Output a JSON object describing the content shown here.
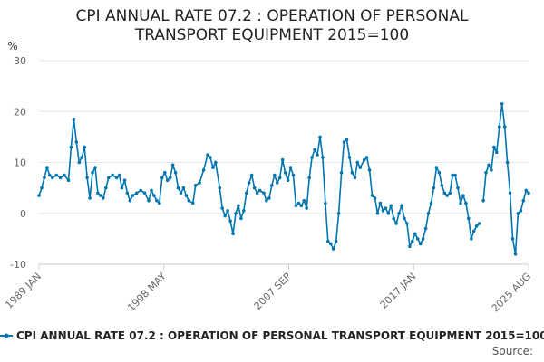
{
  "title": {
    "line1": "CPI ANNUAL RATE 07.2 : OPERATION OF PERSONAL",
    "line2": "TRANSPORT EQUIPMENT 2015=100"
  },
  "legend": {
    "label": "CPI ANNUAL RATE 07.2 : OPERATION OF PERSONAL TRANSPORT EQUIPMENT 2015=100"
  },
  "source": {
    "label": "Source:"
  },
  "colors": {
    "series": "#0075b0",
    "grid": "#e6e6e6",
    "axis": "#cccccc",
    "text": "#666666"
  },
  "chart_data": {
    "type": "line",
    "title": "CPI ANNUAL RATE 07.2 : OPERATION OF PERSONAL TRANSPORT EQUIPMENT 2015=100",
    "ylabel": "%",
    "xlabel": "",
    "ylim": [
      -10,
      30
    ],
    "yticks": [
      -10,
      0,
      10,
      20,
      30
    ],
    "xlim": [
      1989.0,
      2025.583
    ],
    "xticks": [
      {
        "x": 1989.0,
        "label": "1989 JAN"
      },
      {
        "x": 1998.333,
        "label": "1998 MAY"
      },
      {
        "x": 2007.667,
        "label": "2007 SEP"
      },
      {
        "x": 2017.0,
        "label": "2017 JAN"
      },
      {
        "x": 2025.583,
        "label": "2025 AUG"
      }
    ],
    "grid": true,
    "series": [
      {
        "name": "CPI ANNUAL RATE 07.2 : OPERATION OF PERSONAL TRANSPORT EQUIPMENT 2015=100",
        "segments": [
          [
            [
              1989.0,
              3.5
            ],
            [
              1989.2,
              5.0
            ],
            [
              1989.4,
              7.0
            ],
            [
              1989.6,
              9.0
            ],
            [
              1989.8,
              7.5
            ],
            [
              1990.0,
              7.0
            ],
            [
              1990.3,
              7.5
            ],
            [
              1990.6,
              7.0
            ],
            [
              1990.9,
              7.5
            ],
            [
              1991.2,
              6.5
            ],
            [
              1991.4,
              13.0
            ],
            [
              1991.6,
              18.5
            ],
            [
              1991.8,
              14.0
            ],
            [
              1992.0,
              10.0
            ],
            [
              1992.2,
              11.0
            ],
            [
              1992.4,
              13.0
            ],
            [
              1992.6,
              7.0
            ],
            [
              1992.8,
              3.0
            ],
            [
              1993.0,
              8.0
            ],
            [
              1993.2,
              9.0
            ],
            [
              1993.4,
              4.0
            ],
            [
              1993.6,
              3.5
            ],
            [
              1993.8,
              3.0
            ],
            [
              1994.0,
              5.0
            ],
            [
              1994.2,
              7.0
            ],
            [
              1994.5,
              7.5
            ],
            [
              1994.8,
              7.0
            ],
            [
              1995.0,
              7.5
            ],
            [
              1995.2,
              5.0
            ],
            [
              1995.4,
              6.5
            ],
            [
              1995.6,
              4.0
            ],
            [
              1995.8,
              2.5
            ],
            [
              1996.0,
              3.5
            ],
            [
              1996.3,
              4.0
            ],
            [
              1996.6,
              4.5
            ],
            [
              1996.9,
              4.0
            ],
            [
              1997.2,
              2.5
            ],
            [
              1997.4,
              4.5
            ],
            [
              1997.6,
              3.5
            ],
            [
              1997.8,
              2.5
            ],
            [
              1998.0,
              2.0
            ],
            [
              1998.2,
              7.0
            ],
            [
              1998.4,
              8.0
            ],
            [
              1998.6,
              6.5
            ],
            [
              1998.8,
              7.0
            ],
            [
              1999.0,
              9.5
            ],
            [
              1999.2,
              8.0
            ],
            [
              1999.4,
              5.0
            ],
            [
              1999.6,
              4.0
            ],
            [
              1999.8,
              5.0
            ],
            [
              2000.0,
              3.5
            ],
            [
              2000.2,
              2.5
            ],
            [
              2000.5,
              2.0
            ],
            [
              2000.7,
              5.5
            ],
            [
              2001.0,
              6.0
            ],
            [
              2001.3,
              8.5
            ],
            [
              2001.6,
              11.5
            ],
            [
              2001.8,
              11.0
            ],
            [
              2002.0,
              9.0
            ],
            [
              2002.2,
              10.0
            ],
            [
              2002.5,
              5.0
            ],
            [
              2002.7,
              1.0
            ],
            [
              2002.9,
              -0.5
            ],
            [
              2003.1,
              0.5
            ],
            [
              2003.3,
              -1.5
            ],
            [
              2003.5,
              -4.0
            ],
            [
              2003.7,
              0.0
            ],
            [
              2003.9,
              1.5
            ],
            [
              2004.1,
              -1.0
            ],
            [
              2004.3,
              0.5
            ],
            [
              2004.5,
              4.0
            ],
            [
              2004.7,
              6.0
            ],
            [
              2004.9,
              7.5
            ],
            [
              2005.1,
              5.0
            ],
            [
              2005.3,
              4.0
            ],
            [
              2005.5,
              4.5
            ],
            [
              2005.8,
              4.0
            ],
            [
              2006.0,
              2.5
            ],
            [
              2006.2,
              3.0
            ],
            [
              2006.4,
              5.5
            ],
            [
              2006.6,
              7.5
            ],
            [
              2006.8,
              6.0
            ],
            [
              2007.0,
              7.0
            ],
            [
              2007.2,
              10.5
            ],
            [
              2007.4,
              8.0
            ],
            [
              2007.6,
              6.5
            ],
            [
              2007.8,
              9.0
            ],
            [
              2008.0,
              7.5
            ],
            [
              2008.2,
              1.5
            ],
            [
              2008.4,
              2.0
            ],
            [
              2008.6,
              1.5
            ],
            [
              2008.8,
              2.5
            ],
            [
              2009.0,
              1.0
            ],
            [
              2009.2,
              7.0
            ],
            [
              2009.4,
              11.0
            ],
            [
              2009.6,
              12.5
            ],
            [
              2009.8,
              11.5
            ],
            [
              2010.0,
              15.0
            ],
            [
              2010.2,
              11.0
            ],
            [
              2010.4,
              2.0
            ],
            [
              2010.6,
              -5.5
            ],
            [
              2010.8,
              -6.0
            ],
            [
              2011.0,
              -7.0
            ],
            [
              2011.2,
              -5.5
            ],
            [
              2011.4,
              0.0
            ],
            [
              2011.6,
              8.0
            ],
            [
              2011.8,
              14.0
            ],
            [
              2012.0,
              14.5
            ],
            [
              2012.2,
              11.0
            ],
            [
              2012.4,
              8.0
            ],
            [
              2012.6,
              7.0
            ],
            [
              2012.8,
              10.0
            ],
            [
              2013.0,
              9.0
            ],
            [
              2013.3,
              10.5
            ],
            [
              2013.5,
              11.0
            ],
            [
              2013.7,
              8.5
            ],
            [
              2013.9,
              3.5
            ],
            [
              2014.1,
              3.0
            ],
            [
              2014.3,
              0.0
            ],
            [
              2014.5,
              2.0
            ],
            [
              2014.7,
              0.5
            ],
            [
              2014.9,
              1.0
            ],
            [
              2015.1,
              0.0
            ],
            [
              2015.3,
              1.5
            ],
            [
              2015.5,
              -1.0
            ],
            [
              2015.7,
              -2.0
            ],
            [
              2015.9,
              0.0
            ],
            [
              2016.1,
              1.5
            ],
            [
              2016.3,
              -1.0
            ],
            [
              2016.5,
              -2.0
            ],
            [
              2016.7,
              -6.5
            ],
            [
              2016.9,
              -5.5
            ],
            [
              2017.1,
              -4.0
            ],
            [
              2017.3,
              -5.0
            ],
            [
              2017.5,
              -6.0
            ],
            [
              2017.7,
              -5.0
            ],
            [
              2017.9,
              -3.0
            ],
            [
              2018.1,
              0.0
            ],
            [
              2018.3,
              2.0
            ],
            [
              2018.5,
              5.0
            ],
            [
              2018.7,
              9.0
            ],
            [
              2018.9,
              8.0
            ],
            [
              2019.1,
              5.5
            ],
            [
              2019.3,
              4.0
            ],
            [
              2019.5,
              3.5
            ],
            [
              2019.7,
              4.0
            ],
            [
              2019.9,
              7.5
            ],
            [
              2020.1,
              7.5
            ],
            [
              2020.3,
              5.0
            ],
            [
              2020.5,
              2.0
            ],
            [
              2020.7,
              3.5
            ],
            [
              2020.9,
              2.0
            ],
            [
              2021.1,
              -1.0
            ],
            [
              2021.3,
              -5.0
            ],
            [
              2021.5,
              -3.5
            ],
            [
              2021.7,
              -2.5
            ],
            [
              2021.9,
              -2.0
            ]
          ],
          [
            [
              2022.2,
              2.5
            ],
            [
              2022.4,
              8.0
            ],
            [
              2022.6,
              9.5
            ],
            [
              2022.8,
              8.5
            ],
            [
              2023.0,
              13.0
            ],
            [
              2023.2,
              12.0
            ],
            [
              2023.4,
              17.0
            ],
            [
              2023.6,
              21.5
            ],
            [
              2023.8,
              17.0
            ],
            [
              2024.0,
              10.0
            ],
            [
              2024.2,
              4.0
            ],
            [
              2024.4,
              -5.0
            ],
            [
              2024.6,
              -8.0
            ],
            [
              2024.8,
              0.0
            ],
            [
              2025.0,
              0.5
            ],
            [
              2025.2,
              2.5
            ],
            [
              2025.4,
              4.5
            ],
            [
              2025.583,
              4.0
            ]
          ]
        ]
      }
    ]
  }
}
